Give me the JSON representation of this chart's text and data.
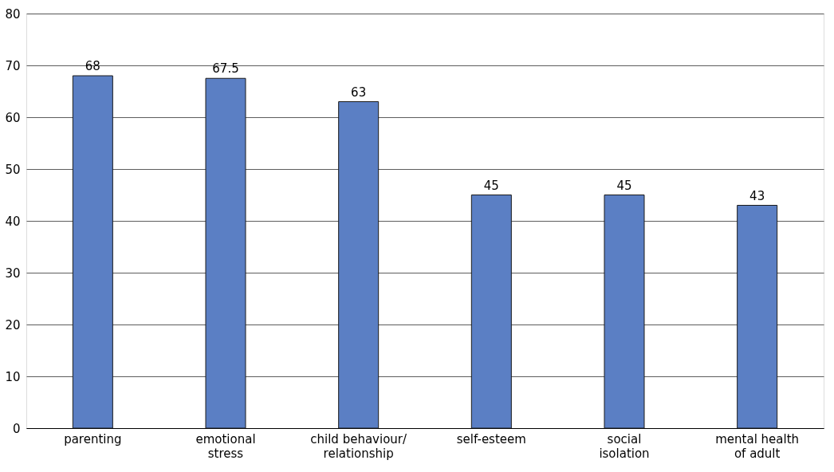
{
  "chart_data": {
    "type": "bar",
    "categories": [
      "parenting",
      "emotional\nstress",
      "child behaviour/\nrelationship",
      "self-esteem",
      "social\nisolation",
      "mental health\nof adult"
    ],
    "values": [
      68,
      67.5,
      63,
      45,
      45,
      43
    ],
    "color": "#5b7fc4",
    "ylim": [
      0,
      80
    ],
    "yticks": [
      0,
      10,
      20,
      30,
      40,
      50,
      60,
      70,
      80
    ],
    "grid": "y",
    "data_labels": true
  }
}
